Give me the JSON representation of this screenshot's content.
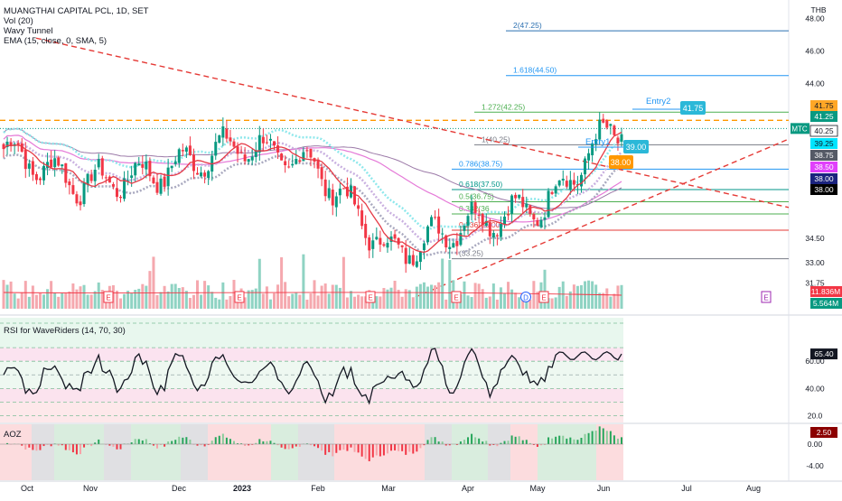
{
  "header": {
    "symbol_title": "MUANGTHAI CAPITAL PCL, 1D, SET",
    "currency": "THB",
    "indicators": [
      "Vol (20)",
      "Wavy Tunnel",
      "EMA (15, close, 0, SMA, 5)"
    ]
  },
  "rsi_pane": {
    "title": "RSI for WaveRiders (14, 70, 30)",
    "value_tag": "65.40"
  },
  "aoz_pane": {
    "title": "AOZ",
    "value_tag": "2.50"
  },
  "volume": {
    "tag1": "11.836M",
    "tag2": "5.564M"
  },
  "chart_data": [
    {
      "type": "candlestick",
      "title": "MUANGTHAI CAPITAL PCL, 1D, SET",
      "ylabel": "THB",
      "ylim": [
        30.5,
        49.5
      ],
      "y_ticks": [
        "48.00",
        "46.00",
        "44.00",
        "34.50",
        "33.00",
        "31.75"
      ],
      "x_ticks": [
        "Oct",
        "Nov",
        "Dec",
        "2023",
        "Feb",
        "Mar",
        "Apr",
        "May",
        "Jun",
        "Jul",
        "Aug"
      ],
      "approx_close_path": [
        {
          "x": "Oct",
          "close": 40.0
        },
        {
          "x": "Nov",
          "close": 37.8
        },
        {
          "x": "Dec",
          "close": 38.6
        },
        {
          "x": "2023",
          "close": 40.3
        },
        {
          "x": "Feb",
          "close": 39.0
        },
        {
          "x": "Mar",
          "close": 33.5
        },
        {
          "x": "Apr",
          "close": 35.5
        },
        {
          "x": "May",
          "close": 36.5
        },
        {
          "x": "Jun",
          "close": 41.25
        }
      ],
      "fib_levels": [
        {
          "label": "2(47.25)",
          "value": 47.25,
          "color": "#2a6fb0"
        },
        {
          "label": "1.618(44.50)",
          "value": 44.5,
          "color": "#2196f3"
        },
        {
          "label": "1.272(42.25)",
          "value": 42.25,
          "color": "#4caf50"
        },
        {
          "label": "1(40.25)",
          "value": 40.25,
          "color": "#787b86"
        },
        {
          "label": "0.786(38.75)",
          "value": 38.75,
          "color": "#2196f3"
        },
        {
          "label": "0.618(37.50)",
          "value": 37.5,
          "color": "#009688"
        },
        {
          "label": "0.5(36.75)",
          "value": 36.75,
          "color": "#4caf50"
        },
        {
          "label": "0.382(36",
          "value": 36.0,
          "color": "#4caf50"
        },
        {
          "label": "0.236(35.00)",
          "value": 35.0,
          "color": "#e53935"
        },
        {
          "label": "(33.25)",
          "value": 33.25,
          "color": "#787b86"
        }
      ],
      "annotations": [
        {
          "text": "Entry2",
          "color": "#2196f3"
        },
        {
          "text": "41.75",
          "bg": "#2bb8d8"
        },
        {
          "text": "Entry1",
          "color": "#2196f3"
        },
        {
          "text": "39.00",
          "bg": "#2bb8d8"
        },
        {
          "text": "38.00",
          "bg": "#ff9800"
        }
      ],
      "price_tags": [
        {
          "text": "41.75",
          "value": 41.75,
          "bg": "#ffa726",
          "fg": "#131722"
        },
        {
          "text": "MTC",
          "value": 41.25,
          "bg": "#089981",
          "fg": "#ffffff"
        },
        {
          "text": "41.25",
          "value": 41.25,
          "bg": "#089981",
          "fg": "#ffffff"
        },
        {
          "text": "40.25",
          "value": 40.25,
          "bg": "#ffffff",
          "fg": "#131722",
          "border": "#131722"
        },
        {
          "text": "39.25",
          "value": 39.25,
          "bg": "#00e5ff",
          "fg": "#131722"
        },
        {
          "text": "38.75",
          "value": 38.75,
          "bg": "#555a66",
          "fg": "#ffffff"
        },
        {
          "text": "38.50",
          "value": 38.5,
          "bg": "#e040fb",
          "fg": "#ffffff"
        },
        {
          "text": "38.00",
          "value": 38.0,
          "bg": "#1a237e",
          "fg": "#ffffff"
        },
        {
          "text": "38.00",
          "value": 38.0,
          "bg": "#000000",
          "fg": "#ffffff"
        }
      ],
      "event_markers": [
        "E",
        "E",
        "E",
        "E",
        "D",
        "E",
        "E"
      ],
      "colors": {
        "up": "#089981",
        "down": "#f23645",
        "ema": "#e53945",
        "dashed_red": "#e53935",
        "resistance": "#ff9800"
      }
    },
    {
      "type": "line",
      "title": "RSI for WaveRiders (14, 70, 30)",
      "y_ticks": [
        "60.00",
        "40.00",
        "20.0"
      ],
      "ylim": [
        15,
        92
      ],
      "levels": [
        70,
        30
      ],
      "last_value": 65.4
    },
    {
      "type": "bar",
      "title": "AOZ",
      "y_ticks": [
        "0.00",
        "-4.00"
      ],
      "last_value": 2.5
    }
  ]
}
